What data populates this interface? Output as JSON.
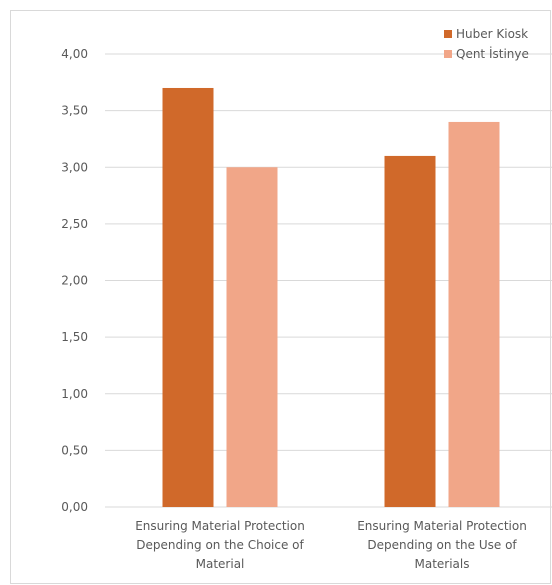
{
  "chart_data": {
    "type": "bar",
    "categories": [
      [
        "Ensuring Material Protection",
        "Depending on the Choice of",
        "Material"
      ],
      [
        "Ensuring Material Protection",
        "Depending on the Use of",
        "Materials"
      ]
    ],
    "series": [
      {
        "name": "Huber Kiosk",
        "color": "#d0692a",
        "values": [
          3.7,
          3.1
        ]
      },
      {
        "name": "Qent İstinye",
        "color": "#f1a688",
        "values": [
          3.0,
          3.4
        ]
      }
    ],
    "y_ticks": [
      "0,00",
      "0,50",
      "1,00",
      "1,50",
      "2,00",
      "2,50",
      "3,00",
      "3,50",
      "4,00"
    ],
    "ylim": [
      0,
      4
    ],
    "tick_step": 0.5,
    "grid": true,
    "legend_position": "top-right",
    "title": "",
    "xlabel": "",
    "ylabel": ""
  }
}
